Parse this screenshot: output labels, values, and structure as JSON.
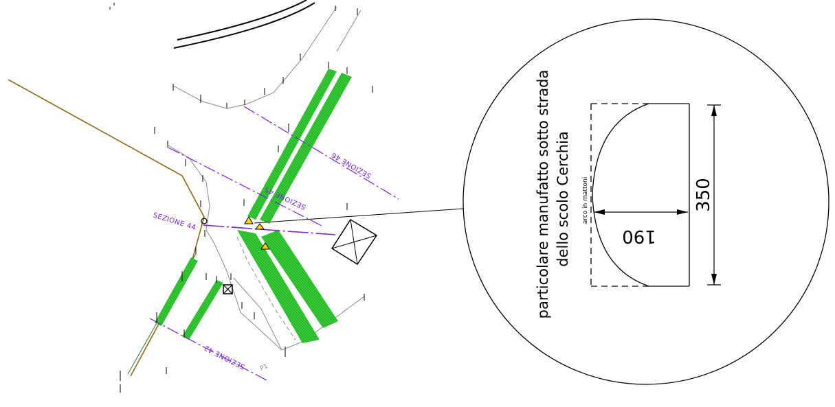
{
  "sections": [
    {
      "id": "sezione-44",
      "label": "SEZIONE 44"
    },
    {
      "id": "sezione-45",
      "label": "SEZIONE 45"
    },
    {
      "id": "sezione-46",
      "label": "SEZIONE 46"
    },
    {
      "id": "sezione-42",
      "label": "SEZIONE 42"
    }
  ],
  "point_label": "P1",
  "detail": {
    "title_line1": "particolare manufatto sotto strada",
    "title_line2": "dello scolo Cerchia",
    "width_dim": "190",
    "height_dim": "350",
    "arch_note": "arco in mattoni"
  },
  "colors": {
    "section_line": "#7a22e6",
    "channel_fill": "#33cc33",
    "road_line": "#8a6a14",
    "survey_line": "#8a8a8a",
    "marker_fill": "#ffd700"
  }
}
